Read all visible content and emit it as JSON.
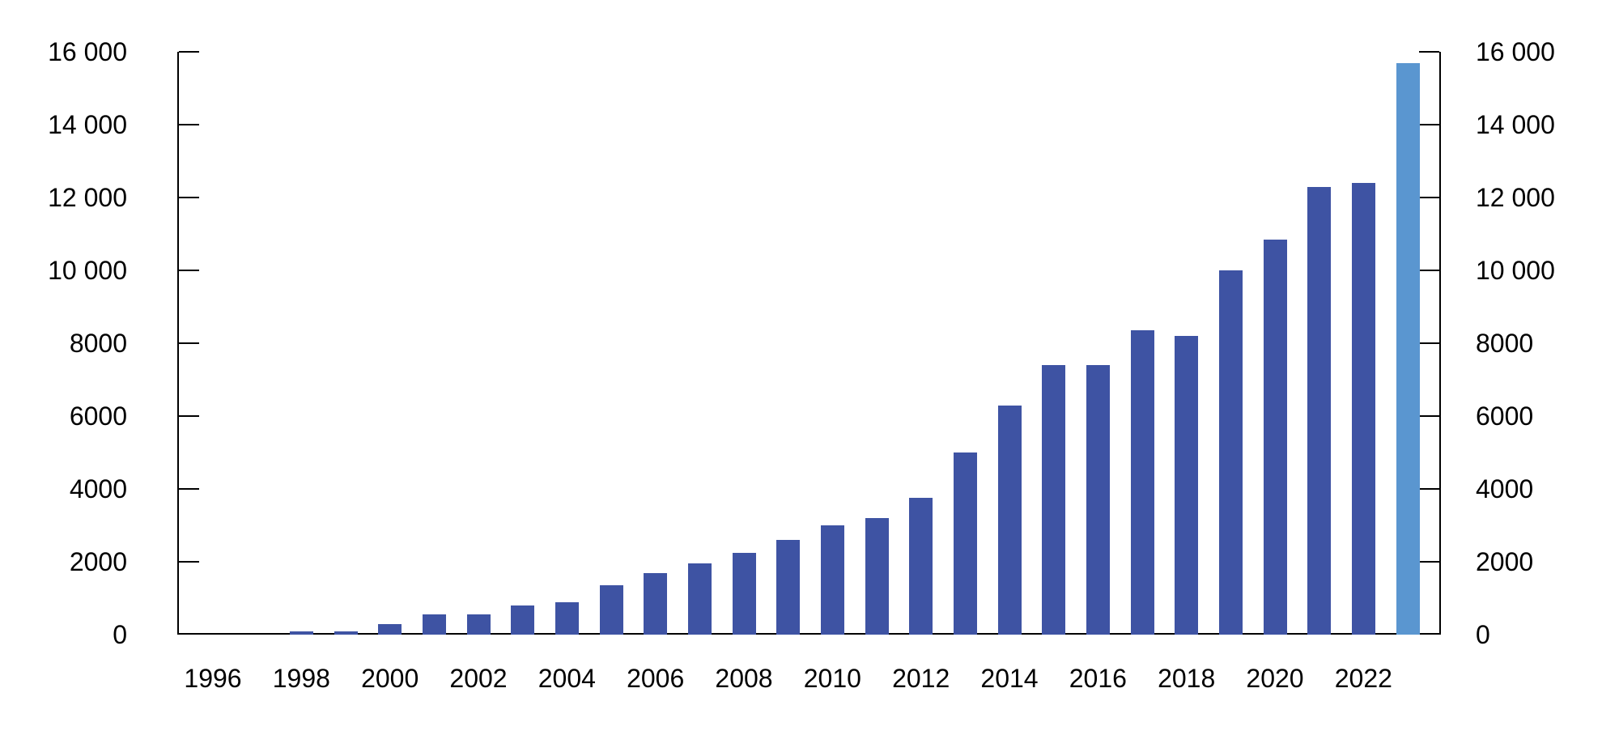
{
  "chart_data": {
    "type": "bar",
    "title": "",
    "categories": [
      "1996",
      "1997",
      "1998",
      "1999",
      "2000",
      "2001",
      "2002",
      "2003",
      "2004",
      "2005",
      "2006",
      "2007",
      "2008",
      "2009",
      "2010",
      "2011",
      "2012",
      "2013",
      "2014",
      "2015",
      "2016",
      "2017",
      "2018",
      "2019",
      "2020",
      "2021",
      "2022",
      "2023"
    ],
    "values": [
      0,
      0,
      100,
      100,
      300,
      550,
      550,
      800,
      900,
      1350,
      1700,
      1950,
      2250,
      2600,
      3000,
      3200,
      3750,
      5000,
      6300,
      7400,
      7400,
      8350,
      8200,
      10000,
      10850,
      12300,
      12400,
      15700
    ],
    "highlight_category": "2023",
    "colors": {
      "bar": "#3E53A3",
      "highlight_bar": "#5A96D0",
      "axis": "#000000",
      "background": "#FFFFFF"
    },
    "ylim": [
      0,
      16000
    ],
    "ytick_values": [
      0,
      2000,
      4000,
      6000,
      8000,
      10000,
      12000,
      14000,
      16000
    ],
    "ytick_labels": [
      "0",
      "2000",
      "4000",
      "6000",
      "8000",
      "10 000",
      "12 000",
      "14 000",
      "16 000"
    ],
    "xtick_labels": [
      "1996",
      "1998",
      "2000",
      "2002",
      "2004",
      "2006",
      "2008",
      "2010",
      "2012",
      "2014",
      "2016",
      "2018",
      "2020",
      "2022"
    ],
    "y_axis_sides": "both",
    "ticks_direction": "inward",
    "grid": false,
    "legend": "none"
  }
}
